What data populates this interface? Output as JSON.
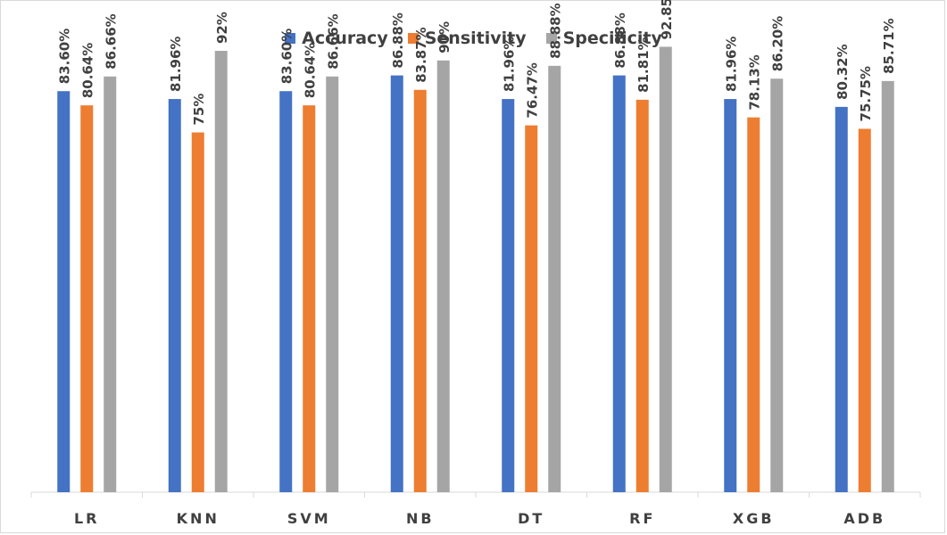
{
  "chart_data": {
    "type": "bar",
    "title": "",
    "xlabel": "",
    "ylabel": "",
    "ylim": [
      0,
      100
    ],
    "grid": false,
    "legend_position": "top",
    "categories": [
      "LR",
      "KNN",
      "SVM",
      "NB",
      "DT",
      "RF",
      "XGB",
      "ADB"
    ],
    "series": [
      {
        "name": "Accuracy",
        "color": "#4472C4",
        "values": [
          83.6,
          81.96,
          83.6,
          86.88,
          81.96,
          86.88,
          81.96,
          80.32
        ],
        "labels": [
          "83.60%",
          "81.96%",
          "83.60%",
          "86.88%",
          "81.96%",
          "86.88%",
          "81.96%",
          "80.32%"
        ]
      },
      {
        "name": "Sensitivity",
        "color": "#ED7D31",
        "values": [
          80.64,
          75,
          80.64,
          83.87,
          76.47,
          81.81,
          78.13,
          75.75
        ],
        "labels": [
          "80.64%",
          "75%",
          "80.64%",
          "83.87%",
          "76.47%",
          "81.81%",
          "78.13%",
          "75.75%"
        ]
      },
      {
        "name": "Specificity",
        "color": "#A5A5A5",
        "values": [
          86.66,
          92,
          86.66,
          90,
          88.88,
          92.85,
          86.2,
          85.71
        ],
        "labels": [
          "86.66%",
          "92%",
          "86.66%",
          "90%",
          "88.88%",
          "92.85%",
          "86.20%",
          "85.71%"
        ]
      }
    ]
  }
}
